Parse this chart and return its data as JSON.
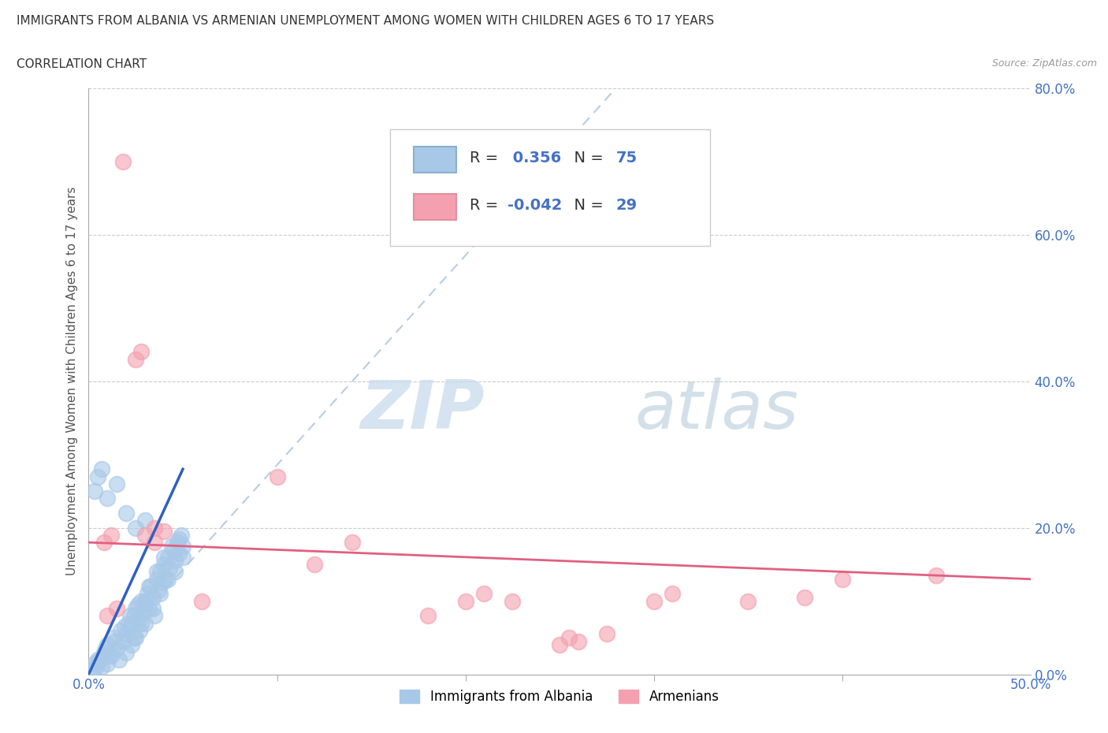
{
  "title": "IMMIGRANTS FROM ALBANIA VS ARMENIAN UNEMPLOYMENT AMONG WOMEN WITH CHILDREN AGES 6 TO 17 YEARS",
  "subtitle": "CORRELATION CHART",
  "source": "Source: ZipAtlas.com",
  "ylabel": "Unemployment Among Women with Children Ages 6 to 17 years",
  "xlim": [
    0,
    50
  ],
  "ylim": [
    0,
    80
  ],
  "xticks": [
    0,
    10,
    20,
    30,
    40,
    50
  ],
  "xticklabels": [
    "0.0%",
    "",
    "",
    "",
    "",
    "50.0%"
  ],
  "yticks": [
    0,
    20,
    40,
    60,
    80
  ],
  "yticklabels": [
    "0.0%",
    "20.0%",
    "40.0%",
    "60.0%",
    "80.0%"
  ],
  "albania_color": "#a8c8e8",
  "armenian_color": "#f4a0b0",
  "albania_R": 0.356,
  "albania_N": 75,
  "armenian_R": -0.042,
  "armenian_N": 29,
  "albania_line_color": "#3060c0",
  "armenian_line_color": "#e06080",
  "trend_line_color": "#b0c8e0",
  "watermark_zip": "ZIP",
  "watermark_atlas": "atlas",
  "legend_labels": [
    "Immigrants from Albania",
    "Armenians"
  ],
  "albania_scatter": [
    [
      0.3,
      1.5
    ],
    [
      0.5,
      2.0
    ],
    [
      0.7,
      1.0
    ],
    [
      0.8,
      3.0
    ],
    [
      1.0,
      1.5
    ],
    [
      1.0,
      4.0
    ],
    [
      1.2,
      2.5
    ],
    [
      1.3,
      5.0
    ],
    [
      1.5,
      3.5
    ],
    [
      1.6,
      2.0
    ],
    [
      1.7,
      6.0
    ],
    [
      1.8,
      4.5
    ],
    [
      2.0,
      5.5
    ],
    [
      2.0,
      3.0
    ],
    [
      2.1,
      7.0
    ],
    [
      2.2,
      6.5
    ],
    [
      2.3,
      4.0
    ],
    [
      2.4,
      8.0
    ],
    [
      2.5,
      5.0
    ],
    [
      2.5,
      9.0
    ],
    [
      2.6,
      7.5
    ],
    [
      2.7,
      6.0
    ],
    [
      2.8,
      10.0
    ],
    [
      2.9,
      8.5
    ],
    [
      3.0,
      9.5
    ],
    [
      3.0,
      7.0
    ],
    [
      3.1,
      11.0
    ],
    [
      3.2,
      9.0
    ],
    [
      3.3,
      12.0
    ],
    [
      3.4,
      10.5
    ],
    [
      3.5,
      8.0
    ],
    [
      3.6,
      13.0
    ],
    [
      3.7,
      11.5
    ],
    [
      3.8,
      14.0
    ],
    [
      3.9,
      12.5
    ],
    [
      4.0,
      15.0
    ],
    [
      4.1,
      13.0
    ],
    [
      4.2,
      16.0
    ],
    [
      4.3,
      14.5
    ],
    [
      4.5,
      17.0
    ],
    [
      4.6,
      15.5
    ],
    [
      4.7,
      18.0
    ],
    [
      4.8,
      16.5
    ],
    [
      4.9,
      19.0
    ],
    [
      5.0,
      17.5
    ],
    [
      0.2,
      0.5
    ],
    [
      0.4,
      1.0
    ],
    [
      0.6,
      2.0
    ],
    [
      0.9,
      3.5
    ],
    [
      1.1,
      2.8
    ],
    [
      1.4,
      4.5
    ],
    [
      1.9,
      6.5
    ],
    [
      2.2,
      8.0
    ],
    [
      2.4,
      5.0
    ],
    [
      2.6,
      9.5
    ],
    [
      2.8,
      7.0
    ],
    [
      3.0,
      10.0
    ],
    [
      3.2,
      12.0
    ],
    [
      3.4,
      9.0
    ],
    [
      3.6,
      14.0
    ],
    [
      3.8,
      11.0
    ],
    [
      4.0,
      16.0
    ],
    [
      4.2,
      13.0
    ],
    [
      4.4,
      17.5
    ],
    [
      4.6,
      14.0
    ],
    [
      4.8,
      18.5
    ],
    [
      5.0,
      16.0
    ],
    [
      0.3,
      25.0
    ],
    [
      0.5,
      27.0
    ],
    [
      0.7,
      28.0
    ],
    [
      1.0,
      24.0
    ],
    [
      1.5,
      26.0
    ],
    [
      2.0,
      22.0
    ],
    [
      2.5,
      20.0
    ],
    [
      3.0,
      21.0
    ]
  ],
  "armenian_scatter": [
    [
      0.8,
      18.0
    ],
    [
      1.2,
      19.0
    ],
    [
      1.8,
      70.0
    ],
    [
      2.5,
      43.0
    ],
    [
      2.8,
      44.0
    ],
    [
      3.5,
      18.0
    ],
    [
      4.0,
      19.5
    ],
    [
      10.0,
      27.0
    ],
    [
      14.0,
      18.0
    ],
    [
      20.0,
      10.0
    ],
    [
      21.0,
      11.0
    ],
    [
      22.5,
      10.0
    ],
    [
      25.0,
      4.0
    ],
    [
      25.5,
      5.0
    ],
    [
      26.0,
      4.5
    ],
    [
      27.5,
      5.5
    ],
    [
      30.0,
      10.0
    ],
    [
      31.0,
      11.0
    ],
    [
      35.0,
      10.0
    ],
    [
      38.0,
      10.5
    ],
    [
      40.0,
      13.0
    ],
    [
      45.0,
      13.5
    ],
    [
      1.0,
      8.0
    ],
    [
      1.5,
      9.0
    ],
    [
      3.0,
      19.0
    ],
    [
      3.5,
      20.0
    ],
    [
      6.0,
      10.0
    ],
    [
      12.0,
      15.0
    ],
    [
      18.0,
      8.0
    ]
  ]
}
